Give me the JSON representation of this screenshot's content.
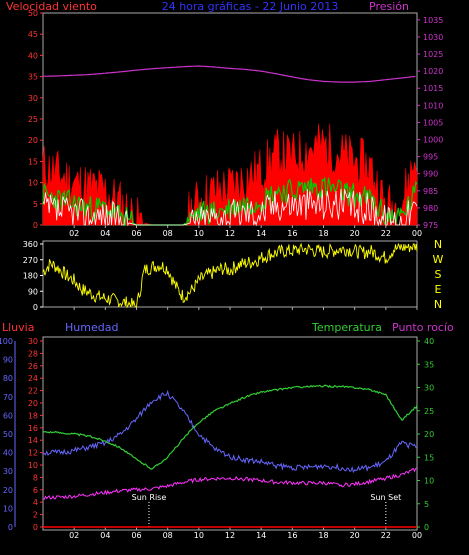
{
  "header": {
    "wind_label": "Velocidad viento",
    "title": "24 hora gráficas - 22 Junio 2013",
    "pressure_label": "Presión"
  },
  "colors": {
    "wind_gust": "#ff0000",
    "wind_avg": "#00cc00",
    "wind_speed": "#ffffff",
    "pressure": "#cc33cc",
    "direction": "#ffff00",
    "rain": "#ff0000",
    "humidity": "#6666ff",
    "temperature": "#33cc33",
    "dewpoint": "#ff33ff",
    "sun_marker": "#ffffff",
    "wind_axis": "#ff3333",
    "rain_axis": "#ff3333"
  },
  "lower_labels": {
    "rain": "Lluvia",
    "humidity": "Humedad",
    "temperature": "Temperatura",
    "dewpoint": "Punto rocío",
    "sunrise": "Sun Rise",
    "sunset": "Sun Set"
  },
  "chart_data": [
    {
      "id": "wind_pressure",
      "type": "line",
      "xlabel": "",
      "x_ticks": [
        "02",
        "04",
        "06",
        "08",
        "10",
        "12",
        "14",
        "16",
        "18",
        "20",
        "22",
        "00"
      ],
      "y_left": {
        "ticks": [
          0,
          5,
          10,
          15,
          20,
          25,
          30,
          35,
          40,
          45,
          50
        ],
        "ylim": [
          0,
          50
        ]
      },
      "y_right": {
        "ticks": [
          975,
          980,
          985,
          990,
          995,
          1000,
          1005,
          1010,
          1015,
          1020,
          1025,
          1030,
          1035
        ],
        "ylim": [
          975,
          1037
        ]
      },
      "series": [
        {
          "key": "pressure",
          "axis": "right",
          "x": [
            0,
            1,
            2,
            3,
            4,
            5,
            6,
            7,
            8,
            9,
            10,
            11,
            12,
            13,
            14,
            15,
            16,
            17,
            18,
            19,
            20,
            21,
            22,
            23,
            24
          ],
          "values": [
            1018.5,
            1018.6,
            1018.8,
            1019.0,
            1019.4,
            1019.8,
            1020.3,
            1020.7,
            1021.0,
            1021.3,
            1021.5,
            1021.2,
            1020.8,
            1020.5,
            1020.0,
            1019.2,
            1018.3,
            1017.5,
            1017.0,
            1016.8,
            1016.8,
            1017.0,
            1017.5,
            1018.0,
            1018.5
          ]
        },
        {
          "key": "wind_gust",
          "axis": "left",
          "x": [
            0,
            1,
            2,
            3,
            4,
            5,
            6,
            7,
            8,
            9,
            10,
            11,
            12,
            13,
            14,
            15,
            16,
            17,
            18,
            19,
            20,
            21,
            22,
            23,
            24
          ],
          "values": [
            14,
            12,
            10,
            9,
            8,
            5,
            1,
            0,
            0,
            0,
            6,
            8,
            9,
            11,
            13,
            17,
            16,
            18,
            19,
            17,
            15,
            14,
            4,
            5,
            17
          ]
        },
        {
          "key": "wind_avg",
          "axis": "left",
          "x": [
            0,
            1,
            2,
            3,
            4,
            5,
            6,
            7,
            8,
            9,
            10,
            11,
            12,
            13,
            14,
            15,
            16,
            17,
            18,
            19,
            20,
            21,
            22,
            23,
            24
          ],
          "values": [
            7,
            6,
            5,
            4,
            4,
            2,
            0,
            0,
            0,
            0,
            3,
            3,
            4,
            5,
            6,
            8,
            8,
            9,
            9,
            8,
            7,
            6,
            2,
            2,
            8
          ]
        },
        {
          "key": "wind_speed",
          "axis": "left",
          "x": [
            0,
            1,
            2,
            3,
            4,
            5,
            6,
            7,
            8,
            9,
            10,
            11,
            12,
            13,
            14,
            15,
            16,
            17,
            18,
            19,
            20,
            21,
            22,
            23,
            24
          ],
          "values": [
            4,
            3,
            3,
            2,
            2,
            1,
            0,
            0,
            0,
            0,
            1,
            2,
            2,
            3,
            3,
            5,
            5,
            5,
            5,
            5,
            4,
            4,
            1,
            1,
            4
          ]
        }
      ]
    },
    {
      "id": "wind_direction",
      "type": "scatter",
      "xlabel": "",
      "y_ticks": [
        0,
        90,
        180,
        270,
        360
      ],
      "y_right_labels": [
        "N",
        "W",
        "S",
        "E",
        "N"
      ],
      "ylim": [
        0,
        360
      ],
      "series": [
        {
          "key": "direction",
          "x": [
            0,
            0.5,
            1,
            1.5,
            2,
            2.5,
            3,
            3.5,
            4,
            4.5,
            5,
            5.5,
            6,
            6.5,
            7,
            7.5,
            8,
            8.5,
            9,
            9.5,
            10,
            10.5,
            11,
            11.5,
            12,
            12.5,
            13,
            13.5,
            14,
            14.5,
            15,
            15.5,
            16,
            16.5,
            17,
            17.5,
            18,
            18.5,
            19,
            19.5,
            20,
            20.5,
            21,
            21.5,
            22,
            22.5,
            23,
            23.5,
            24
          ],
          "values": [
            200,
            250,
            220,
            180,
            150,
            100,
            80,
            60,
            50,
            40,
            30,
            20,
            0,
            210,
            230,
            240,
            220,
            120,
            60,
            90,
            150,
            180,
            200,
            220,
            210,
            240,
            250,
            260,
            280,
            300,
            310,
            320,
            320,
            330,
            330,
            320,
            315,
            320,
            330,
            330,
            320,
            310,
            320,
            300,
            280,
            330,
            340,
            345,
            350
          ]
        }
      ]
    },
    {
      "id": "temp_humidity_rain",
      "type": "line",
      "xlabel": "",
      "y_rain": {
        "ticks": [
          0,
          2,
          4,
          6,
          8,
          10,
          12,
          14,
          16,
          18,
          20,
          22,
          24,
          26,
          28,
          30
        ],
        "ylim": [
          0,
          30
        ]
      },
      "y_humidity": {
        "ticks": [
          0,
          10,
          20,
          30,
          40,
          50,
          60,
          70,
          80,
          90,
          100
        ],
        "ylim": [
          0,
          100
        ]
      },
      "y_temp": {
        "ticks": [
          0,
          5,
          10,
          15,
          20,
          25,
          30,
          35,
          40
        ],
        "ylim": [
          0,
          40
        ]
      },
      "sunrise_x": 6.8,
      "sunset_x": 22.0,
      "series": [
        {
          "key": "humidity",
          "axis": "humidity",
          "x": [
            0,
            1,
            2,
            3,
            4,
            5,
            6,
            7,
            8,
            9,
            10,
            11,
            12,
            13,
            14,
            15,
            16,
            17,
            18,
            19,
            20,
            21,
            22,
            23,
            24
          ],
          "values": [
            40,
            40,
            41,
            43,
            45,
            50,
            58,
            68,
            72,
            62,
            50,
            42,
            38,
            36,
            35,
            33,
            32,
            32,
            33,
            32,
            31,
            32,
            35,
            45,
            43
          ]
        },
        {
          "key": "temperature",
          "axis": "temp",
          "x": [
            0,
            1,
            2,
            3,
            4,
            5,
            6,
            7,
            8,
            9,
            10,
            11,
            12,
            13,
            14,
            15,
            16,
            17,
            18,
            19,
            20,
            21,
            22,
            23,
            24
          ],
          "values": [
            20.5,
            20.3,
            20.0,
            19.5,
            18.5,
            17.0,
            14.5,
            12.5,
            15.0,
            19.0,
            22.5,
            25.0,
            26.5,
            28.0,
            29.0,
            29.5,
            30.0,
            30.2,
            30.3,
            30.2,
            30.0,
            29.5,
            28.5,
            23.0,
            26.0
          ]
        },
        {
          "key": "dewpoint",
          "axis": "temp",
          "x": [
            0,
            1,
            2,
            3,
            4,
            5,
            6,
            7,
            8,
            9,
            10,
            11,
            12,
            13,
            14,
            15,
            16,
            17,
            18,
            19,
            20,
            21,
            22,
            23,
            24
          ],
          "values": [
            6.3,
            6.4,
            6.6,
            7.0,
            7.4,
            7.8,
            8.0,
            8.2,
            8.8,
            9.6,
            10.2,
            10.4,
            10.5,
            10.3,
            10.0,
            9.6,
            9.5,
            9.4,
            9.5,
            9.0,
            9.2,
            9.8,
            10.5,
            11.2,
            12.5
          ]
        },
        {
          "key": "rain",
          "axis": "rain",
          "x": [
            0,
            24
          ],
          "values": [
            0,
            0
          ]
        }
      ]
    }
  ]
}
